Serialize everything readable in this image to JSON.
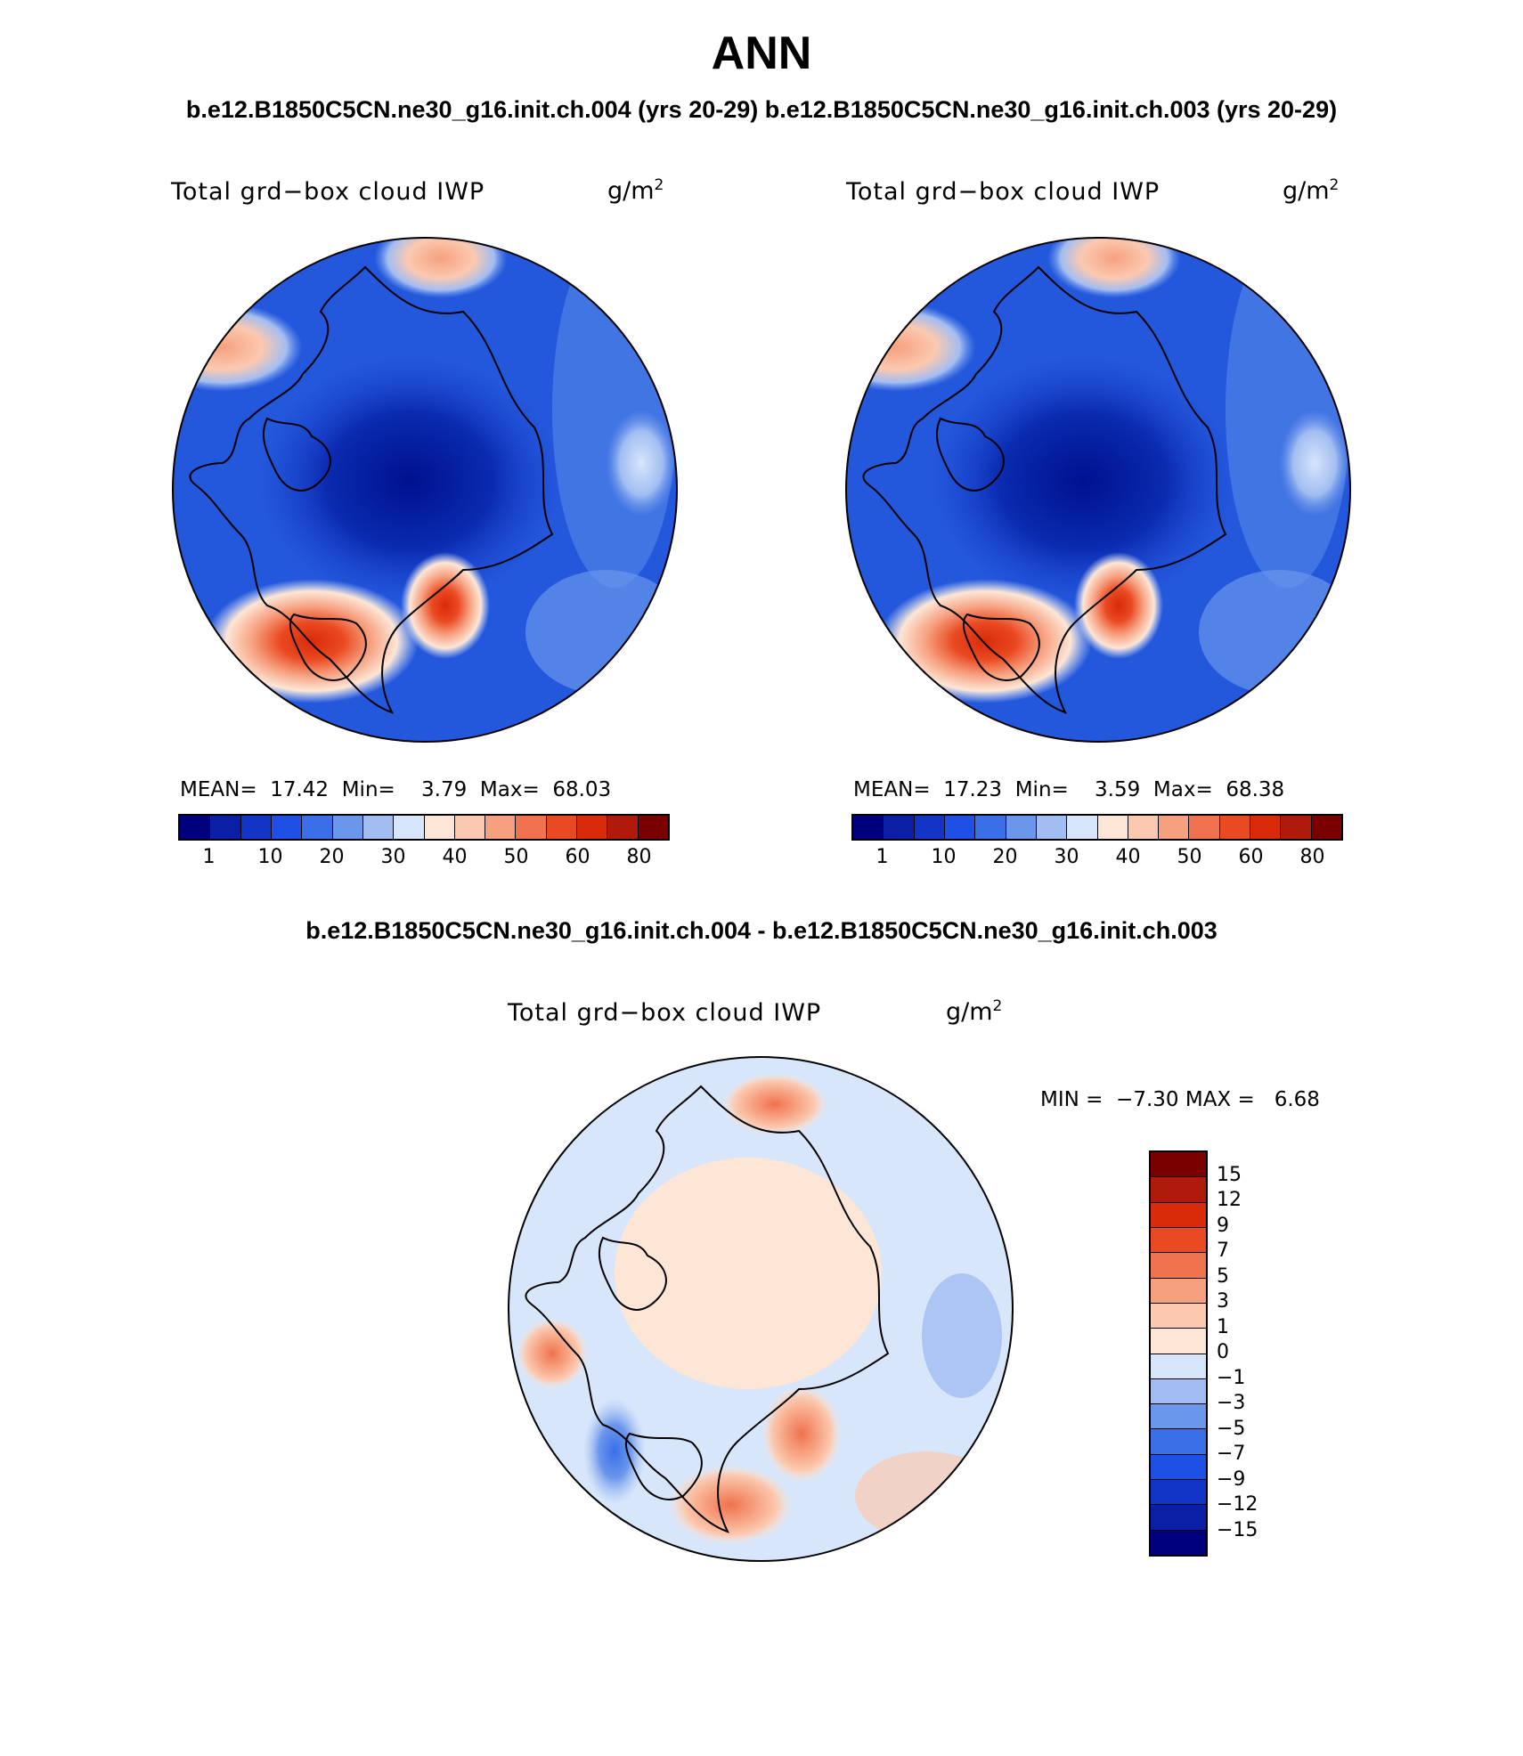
{
  "figure": {
    "title": "ANN",
    "case_titles": "b.e12.B1850C5CN.ne30_g16.init.ch.004 (yrs 20-29) b.e12.B1850C5CN.ne30_g16.init.ch.003 (yrs 20-29)",
    "diff_title": "b.e12.B1850C5CN.ne30_g16.init.ch.004 - b.e12.B1850C5CN.ne30_g16.init.ch.003"
  },
  "panels": [
    {
      "variable": "Total grd−box cloud IWP",
      "units": "g/m",
      "units_exponent": "2",
      "stats": {
        "mean_label": "MEAN=",
        "mean": "17.42",
        "min_label": "Min=",
        "min": "3.79",
        "max_label": "Max=",
        "max": "68.03"
      }
    },
    {
      "variable": "Total grd−box cloud IWP",
      "units": "g/m",
      "units_exponent": "2",
      "stats": {
        "mean_label": "MEAN=",
        "mean": "17.23",
        "min_label": "Min=",
        "min": "3.59",
        "max_label": "Max=",
        "max": "68.38"
      }
    },
    {
      "variable": "Total grd−box cloud IWP",
      "units": "g/m",
      "units_exponent": "2",
      "stats": {
        "min_label": "MIN =",
        "min": "−7.30",
        "max_label": "MAX =",
        "max": "6.68"
      }
    }
  ],
  "colorbars": {
    "absolute": {
      "colors": [
        "#00007f",
        "#0a1fa6",
        "#1235c8",
        "#1f50e6",
        "#3a6fe8",
        "#6a96ec",
        "#a2bdf2",
        "#d7e6fa",
        "#fde6d6",
        "#fbc9b0",
        "#f6a07f",
        "#f0724f",
        "#ea4a22",
        "#d92a0a",
        "#b01a0a",
        "#7a0000"
      ],
      "tick_labels": [
        "1",
        "10",
        "20",
        "30",
        "40",
        "50",
        "60",
        "80"
      ]
    },
    "difference": {
      "colors": [
        "#00007f",
        "#0a1fa6",
        "#1235c8",
        "#1f50e6",
        "#3a6fe8",
        "#6a96ec",
        "#a2bdf2",
        "#d7e6fa",
        "#fde6d6",
        "#fbc9b0",
        "#f6a07f",
        "#f0724f",
        "#ea4a22",
        "#d92a0a",
        "#b01a0a",
        "#7a0000"
      ],
      "tick_labels": [
        "15",
        "12",
        "9",
        "7",
        "5",
        "3",
        "1",
        "0",
        "−1",
        "−3",
        "−5",
        "−7",
        "−9",
        "−12",
        "−15"
      ]
    }
  },
  "maps": [
    {
      "projection": "north polar stereographic",
      "field": "IWP case 004",
      "background": "#1f4fd6"
    },
    {
      "projection": "north polar stereographic",
      "field": "IWP case 003",
      "background": "#1f4fd6"
    },
    {
      "projection": "north polar stereographic",
      "field": "difference",
      "background": "#d7e6fa"
    }
  ]
}
